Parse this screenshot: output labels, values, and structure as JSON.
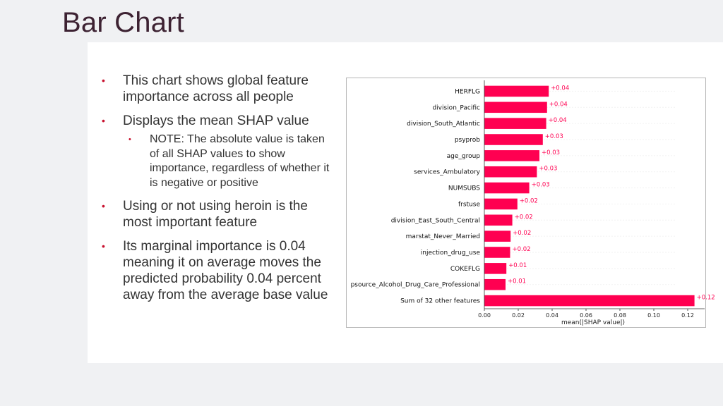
{
  "slide": {
    "title": "Bar Chart"
  },
  "bullets": [
    {
      "text": "This chart shows global feature importance across all people"
    },
    {
      "text": "Displays the mean SHAP value",
      "sub": [
        {
          "text": "NOTE: The absolute value is taken of all SHAP values to show importance, regardless of whether it is negative or positive"
        }
      ]
    },
    {
      "text": "Using or not using heroin is the most important feature"
    },
    {
      "text": "Its marginal importance is 0.04 meaning it on average moves the predicted probability 0.04 percent away from the average base value"
    }
  ],
  "bullet_symbol": "•",
  "colors": {
    "bar": "#ff0051",
    "bullet": "#c8102e",
    "title": "#3d2232"
  },
  "chart_data": {
    "type": "bar",
    "orientation": "horizontal",
    "title": "",
    "xlabel": "mean(|SHAP value|)",
    "ylabel": "",
    "xlim": [
      0,
      0.13
    ],
    "xticks": [
      0.0,
      0.02,
      0.04,
      0.06,
      0.08,
      0.1,
      0.12
    ],
    "xtick_labels": [
      "0.00",
      "0.02",
      "0.04",
      "0.06",
      "0.08",
      "0.10",
      "0.12"
    ],
    "categories": [
      "HERFLG",
      "division_Pacific",
      "division_South_Atlantic",
      "psyprob",
      "age_group",
      "services_Ambulatory",
      "NUMSUBS",
      "frstuse",
      "division_East_South_Central",
      "marstat_Never_Married",
      "injection_drug_use",
      "COKEFLG",
      "psource_Alcohol_Drug_Care_Professional",
      "Sum of 32 other features"
    ],
    "values": [
      0.038,
      0.037,
      0.0365,
      0.0345,
      0.0325,
      0.031,
      0.0265,
      0.0195,
      0.0165,
      0.0155,
      0.0152,
      0.013,
      0.0125,
      0.124
    ],
    "value_labels": [
      "+0.04",
      "+0.04",
      "+0.04",
      "+0.03",
      "+0.03",
      "+0.03",
      "+0.03",
      "+0.02",
      "+0.02",
      "+0.02",
      "+0.02",
      "+0.01",
      "+0.01",
      "+0.12"
    ]
  }
}
